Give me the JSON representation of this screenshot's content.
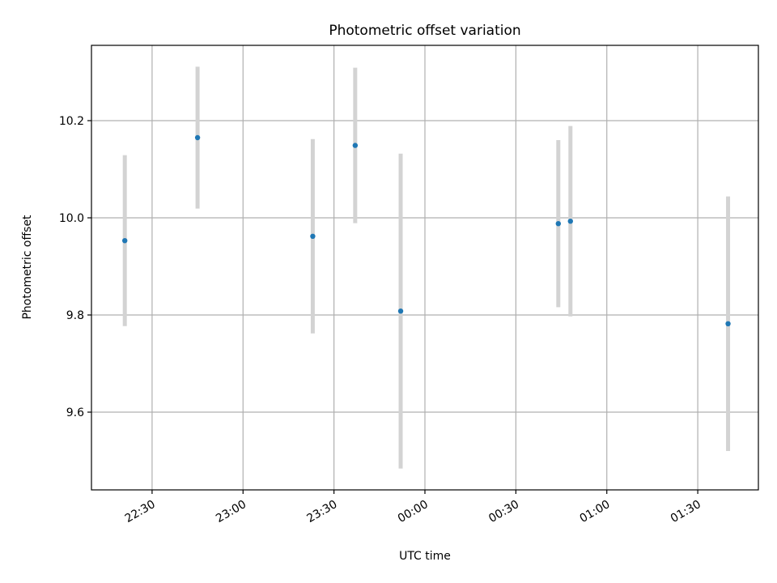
{
  "chart_data": {
    "type": "scatter",
    "title": "Photometric offset variation",
    "xlabel": "UTC time",
    "ylabel": "Photometric offset",
    "x_ticks": [
      "22:30",
      "23:00",
      "23:30",
      "00:00",
      "00:30",
      "01:00",
      "01:30"
    ],
    "y_ticks": [
      9.6,
      9.8,
      10.0,
      10.2
    ],
    "xlim": [
      "22:10",
      "01:50"
    ],
    "ylim": [
      9.44,
      10.355
    ],
    "grid": true,
    "marker_color": "#1f77b4",
    "errorbar_color": "#d3d3d3",
    "points": [
      {
        "time": "22:21",
        "y": 9.953,
        "yerr": 0.176
      },
      {
        "time": "22:45",
        "y": 10.165,
        "yerr": 0.146
      },
      {
        "time": "23:23",
        "y": 9.962,
        "yerr": 0.2
      },
      {
        "time": "23:37",
        "y": 10.149,
        "yerr": 0.16
      },
      {
        "time": "23:52",
        "y": 9.808,
        "yerr": 0.324
      },
      {
        "time": "00:44",
        "y": 9.988,
        "yerr": 0.172
      },
      {
        "time": "00:48",
        "y": 9.993,
        "yerr": 0.196
      },
      {
        "time": "01:40",
        "y": 9.782,
        "yerr": 0.262
      }
    ]
  }
}
